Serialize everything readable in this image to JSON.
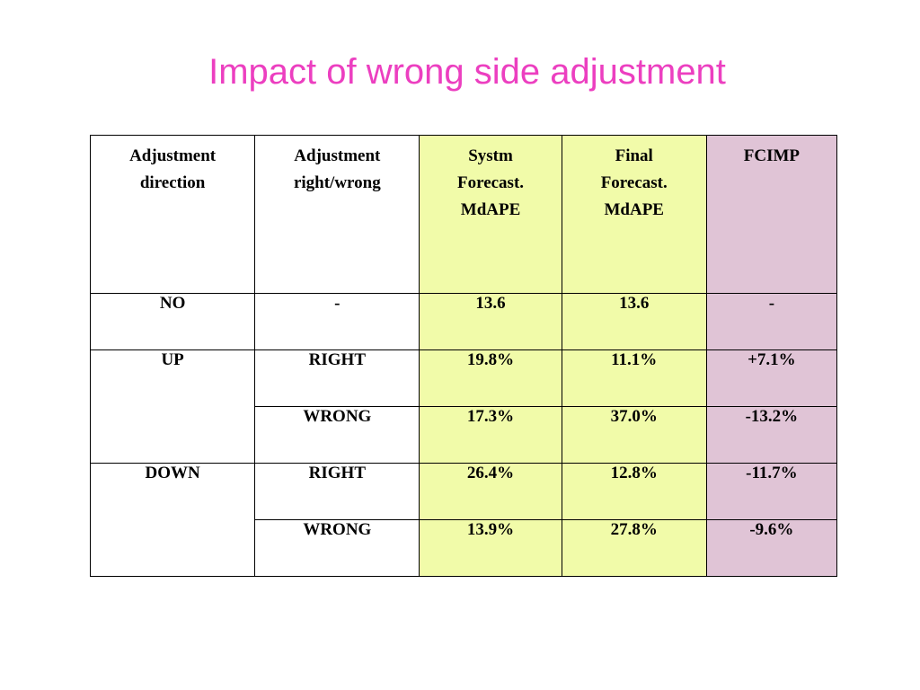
{
  "title": "Impact of wrong side adjustment",
  "colors": {
    "title": "#ec3fc0",
    "system_col_bg": "#f1fba9",
    "fcimp_col_bg": "#e0c4d6",
    "negative_text": "#ee1c1c"
  },
  "table": {
    "headers": {
      "direction": [
        "Adjustment",
        "direction"
      ],
      "right_wrong": [
        "Adjustment",
        "right/wrong"
      ],
      "system": [
        "Systm",
        "Forecast.",
        "MdAPE"
      ],
      "final": [
        "Final",
        "Forecast.",
        "MdAPE"
      ],
      "fcimp": [
        "FCIMP"
      ]
    },
    "no_row": {
      "direction": "NO",
      "right_wrong": "-",
      "system": "13.6",
      "final": "13.6",
      "fcimp": "-"
    },
    "up": {
      "direction": "UP",
      "right": {
        "label": "RIGHT",
        "system": "19.8%",
        "final": "11.1%",
        "fcimp": "+7.1%"
      },
      "wrong": {
        "label": "WRONG",
        "system": "17.3%",
        "final": "37.0%",
        "fcimp": "-13.2%"
      }
    },
    "down": {
      "direction": "DOWN",
      "right": {
        "label": "RIGHT",
        "system": "26.4%",
        "final": "12.8%",
        "fcimp": "-11.7%"
      },
      "wrong": {
        "label": "WRONG",
        "system": "13.9%",
        "final": "27.8%",
        "fcimp": "-9.6%"
      }
    }
  }
}
